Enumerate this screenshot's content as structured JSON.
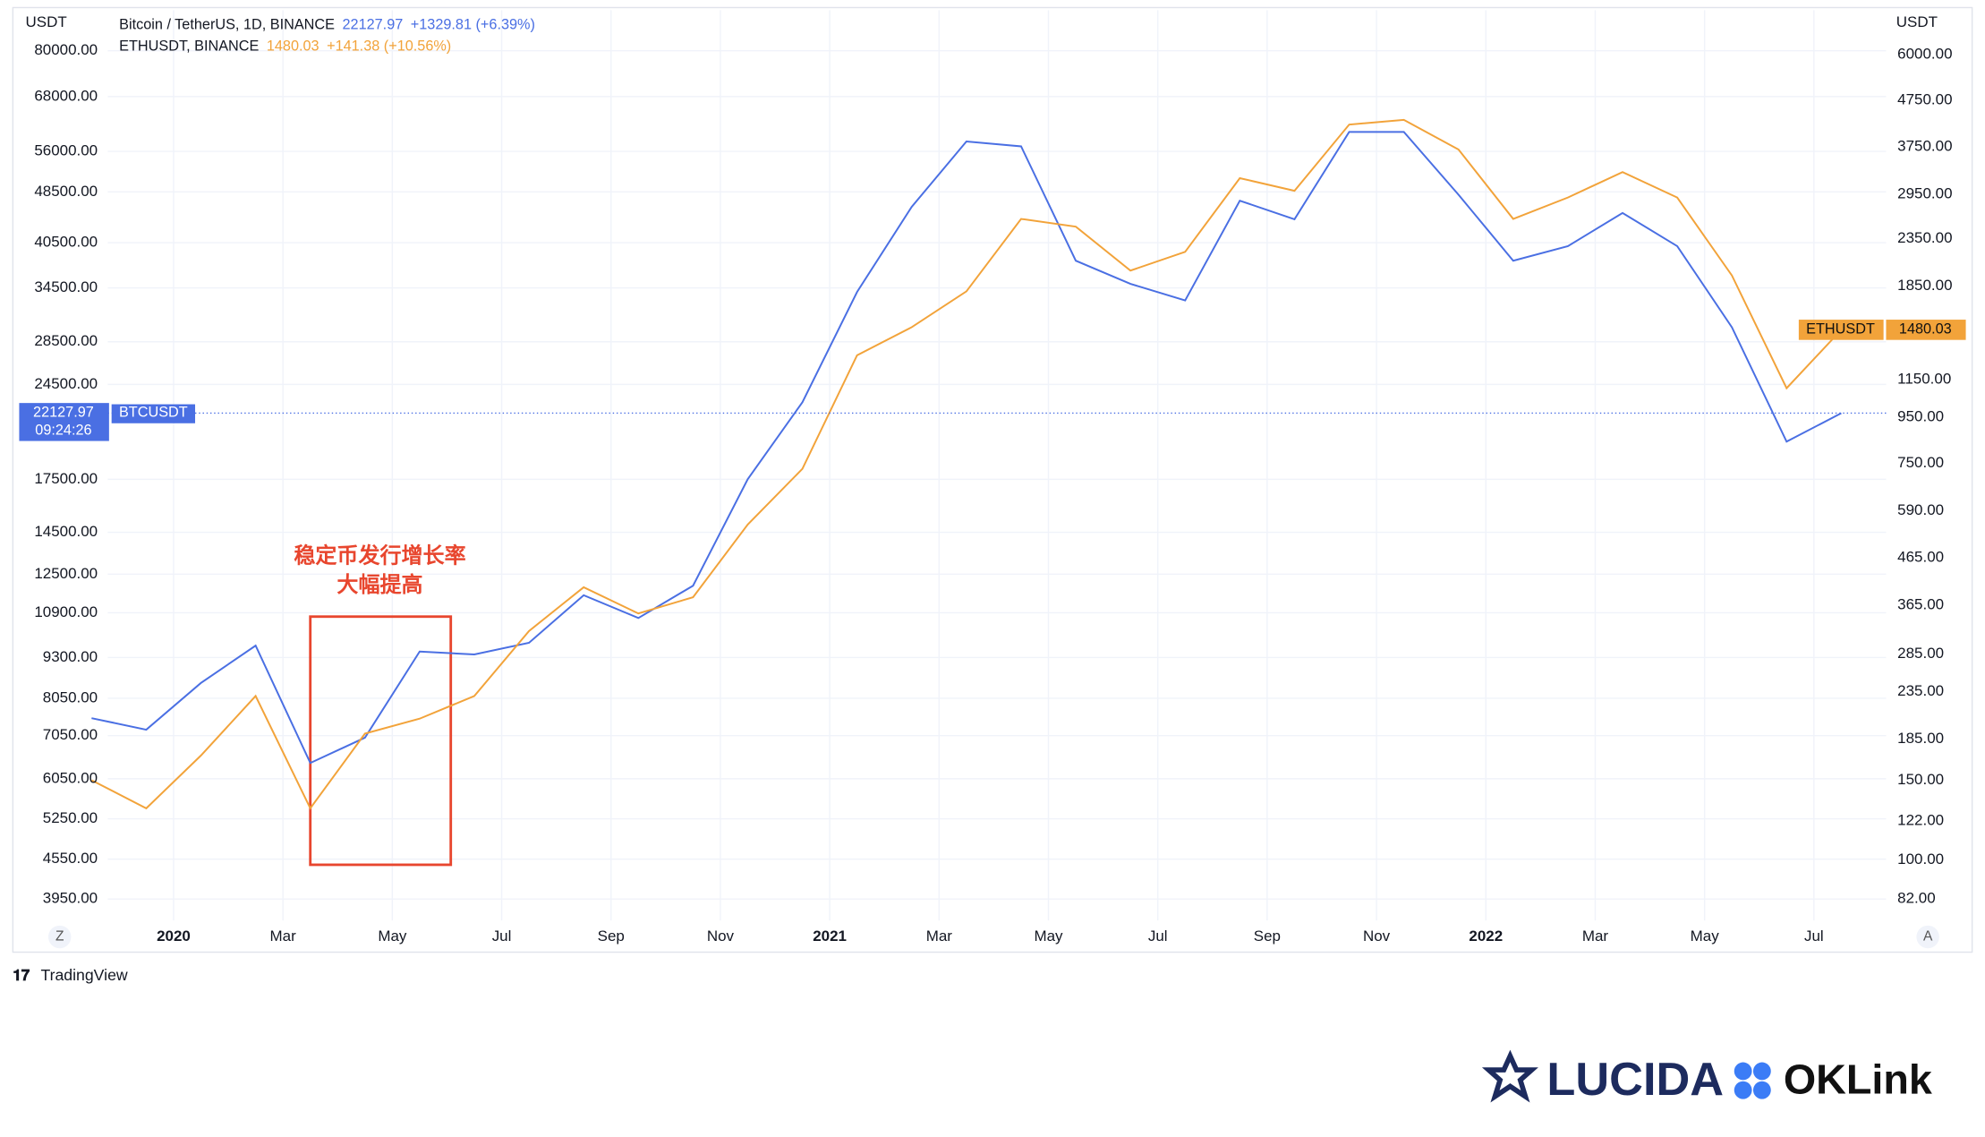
{
  "chart_data": {
    "type": "line",
    "axis_unit": "USDT",
    "y2_axis_unit": "USDT",
    "annotation": [
      "稳定币发行增长率",
      "大幅提高"
    ],
    "time_label": "09:24:26",
    "left_button": "Z",
    "right_button": "A",
    "footer": "TradingView",
    "logos": [
      "LUCIDA",
      "OKLink"
    ],
    "x": [
      "2019-11",
      "2019-12",
      "2020-01",
      "2020-02",
      "2020-03",
      "2020-04",
      "2020-05",
      "2020-06",
      "2020-07",
      "2020-08",
      "2020-09",
      "2020-10",
      "2020-11",
      "2020-12",
      "2021-01",
      "2021-02",
      "2021-03",
      "2021-04",
      "2021-05",
      "2021-06",
      "2021-07",
      "2021-08",
      "2021-09",
      "2021-10",
      "2021-11",
      "2021-12",
      "2022-01",
      "2022-02",
      "2022-03",
      "2022-04",
      "2022-05",
      "2022-06",
      "2022-07"
    ],
    "series": [
      {
        "name": "Bitcoin / TetherUS, 1D, BINANCE",
        "tag": "BTCUSDT",
        "last": 22127.97,
        "change": "+1329.81 (+6.39%)",
        "color": "#4a6fe3",
        "axis": "y",
        "values": [
          7500,
          7200,
          8500,
          9700,
          6400,
          7000,
          9500,
          9400,
          9800,
          11600,
          10700,
          12000,
          17500,
          23000,
          34000,
          46000,
          58000,
          57000,
          38000,
          35000,
          33000,
          47000,
          44000,
          60000,
          60000,
          48000,
          38000,
          40000,
          45000,
          40000,
          30000,
          20000,
          22127.97
        ]
      },
      {
        "name": "ETHUSDT, BINANCE",
        "tag": "ETHUSDT",
        "last": 1480.03,
        "change": "+141.38 (+10.56%)",
        "color": "#f2a33a",
        "axis": "y2",
        "values": [
          150,
          130,
          170,
          230,
          130,
          190,
          205,
          230,
          320,
          400,
          350,
          380,
          550,
          730,
          1300,
          1500,
          1800,
          2600,
          2500,
          2000,
          2200,
          3200,
          3000,
          4200,
          4300,
          3700,
          2600,
          2900,
          3300,
          2900,
          1950,
          1100,
          1480.03
        ]
      }
    ],
    "log_scale": true,
    "grid": true,
    "ylim": [
      3660,
      92400
    ],
    "yticks": [
      {
        "value": 80000,
        "label": "80000.00"
      },
      {
        "value": 68000,
        "label": "68000.00"
      },
      {
        "value": 56000,
        "label": "56000.00"
      },
      {
        "value": 48500,
        "label": "48500.00"
      },
      {
        "value": 40500,
        "label": "40500.00"
      },
      {
        "value": 34500,
        "label": "34500.00"
      },
      {
        "value": 28500,
        "label": "28500.00"
      },
      {
        "value": 24500,
        "label": "24500.00"
      },
      {
        "value": 17500,
        "label": "17500.00"
      },
      {
        "value": 14500,
        "label": "14500.00"
      },
      {
        "value": 12500,
        "label": "12500.00"
      },
      {
        "value": 10900,
        "label": "10900.00"
      },
      {
        "value": 9300,
        "label": "9300.00"
      },
      {
        "value": 8050,
        "label": "8050.00"
      },
      {
        "value": 7050,
        "label": "7050.00"
      },
      {
        "value": 6050,
        "label": "6050.00"
      },
      {
        "value": 5250,
        "label": "5250.00"
      },
      {
        "value": 4550,
        "label": "4550.00"
      },
      {
        "value": 3950,
        "label": "3950.00"
      }
    ],
    "y2lim": [
      73.5,
      7515
    ],
    "y2ticks": [
      {
        "value": 6000,
        "label": "6000.00"
      },
      {
        "value": 4750,
        "label": "4750.00"
      },
      {
        "value": 3750,
        "label": "3750.00"
      },
      {
        "value": 2950,
        "label": "2950.00"
      },
      {
        "value": 2350,
        "label": "2350.00"
      },
      {
        "value": 1850,
        "label": "1850.00"
      },
      {
        "value": 1150,
        "label": "1150.00"
      },
      {
        "value": 950,
        "label": "950.00"
      },
      {
        "value": 750,
        "label": "750.00"
      },
      {
        "value": 590,
        "label": "590.00"
      },
      {
        "value": 465,
        "label": "465.00"
      },
      {
        "value": 365,
        "label": "365.00"
      },
      {
        "value": 285,
        "label": "285.00"
      },
      {
        "value": 235,
        "label": "235.00"
      },
      {
        "value": 185,
        "label": "185.00"
      },
      {
        "value": 150,
        "label": "150.00"
      },
      {
        "value": 122,
        "label": "122.00"
      },
      {
        "value": 100,
        "label": "100.00"
      },
      {
        "value": 82,
        "label": "82.00"
      }
    ],
    "xticks": [
      {
        "value": "2020-01",
        "label": "2020"
      },
      {
        "value": "2020-03",
        "label": "Mar"
      },
      {
        "value": "2020-05",
        "label": "May"
      },
      {
        "value": "2020-07",
        "label": "Jul"
      },
      {
        "value": "2020-09",
        "label": "Sep"
      },
      {
        "value": "2020-11",
        "label": "Nov"
      },
      {
        "value": "2021-01",
        "label": "2021"
      },
      {
        "value": "2021-03",
        "label": "Mar"
      },
      {
        "value": "2021-05",
        "label": "May"
      },
      {
        "value": "2021-07",
        "label": "Jul"
      },
      {
        "value": "2021-09",
        "label": "Sep"
      },
      {
        "value": "2021-11",
        "label": "Nov"
      },
      {
        "value": "2022-01",
        "label": "2022"
      },
      {
        "value": "2022-03",
        "label": "Mar"
      },
      {
        "value": "2022-05",
        "label": "May"
      },
      {
        "value": "2022-07",
        "label": "Jul"
      }
    ]
  }
}
